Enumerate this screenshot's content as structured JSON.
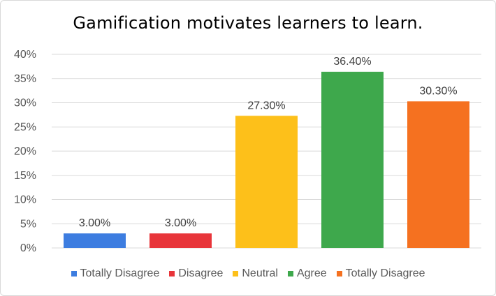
{
  "chart_data": {
    "type": "bar",
    "title": "Gamification motivates learners to learn.",
    "categories": [
      "Totally Disagree",
      "Disagree",
      "Neutral",
      "Agree",
      "Totally Disagree"
    ],
    "values": [
      3.0,
      3.0,
      27.3,
      36.4,
      30.3
    ],
    "data_labels": [
      "3.00%",
      "3.00%",
      "27.30%",
      "36.40%",
      "30.30%"
    ],
    "colors": [
      "#3d7de0",
      "#e8353a",
      "#fdc01a",
      "#3ea84c",
      "#f57120"
    ],
    "y_ticks": [
      "0%",
      "5%",
      "10%",
      "15%",
      "20%",
      "25%",
      "30%",
      "35%",
      "40%"
    ],
    "ylim": [
      0,
      40
    ],
    "y_unit": "%",
    "grid": true,
    "legend_position": "bottom",
    "xlabel": "",
    "ylabel": ""
  }
}
